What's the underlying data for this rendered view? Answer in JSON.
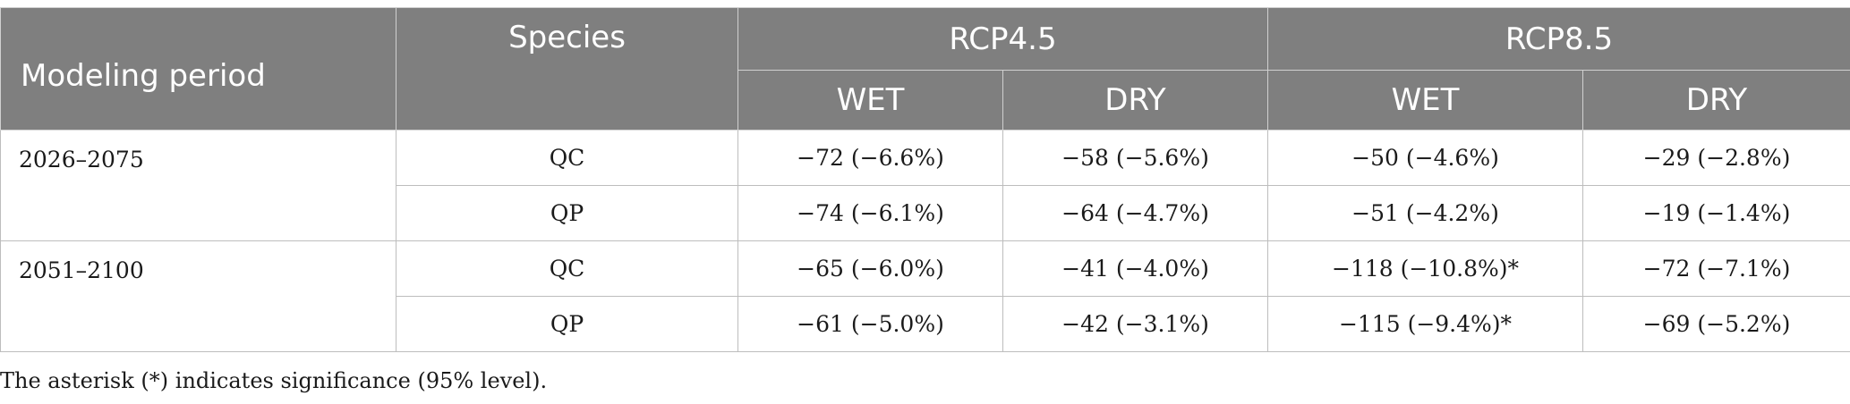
{
  "headers": {
    "modeling_period": "Modeling period",
    "species": "Species",
    "rcp45": "RCP4.5",
    "rcp85": "RCP8.5",
    "wet": "WET",
    "dry": "DRY"
  },
  "rows": [
    {
      "period": "2026–2075",
      "species": "QC",
      "rcp45_wet": "−72 (−6.6%)",
      "rcp45_dry": "−58 (−5.6%)",
      "rcp85_wet": "−50 (−4.6%)",
      "rcp85_dry": "−29 (−2.8%)"
    },
    {
      "period": "",
      "species": "QP",
      "rcp45_wet": "−74 (−6.1%)",
      "rcp45_dry": "−64 (−4.7%)",
      "rcp85_wet": "−51 (−4.2%)",
      "rcp85_dry": "−19 (−1.4%)"
    },
    {
      "period": "2051–2100",
      "species": "QC",
      "rcp45_wet": "−65 (−6.0%)",
      "rcp45_dry": "−41 (−4.0%)",
      "rcp85_wet": "−118 (−10.8%)*",
      "rcp85_dry": "−72 (−7.1%)"
    },
    {
      "period": "",
      "species": "QP",
      "rcp45_wet": "−61 (−5.0%)",
      "rcp45_dry": "−42 (−3.1%)",
      "rcp85_wet": "−115 (−9.4%)*",
      "rcp85_dry": "−69 (−5.2%)"
    }
  ],
  "footnote": "The asterisk (*) indicates significance (95% level)."
}
